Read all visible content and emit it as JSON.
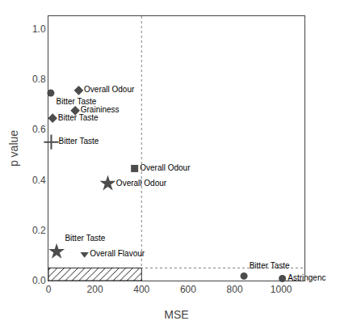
{
  "chart_data": {
    "type": "scatter",
    "xlabel": "MSE",
    "ylabel": "p value",
    "x": [
      10,
      130,
      115,
      18,
      12,
      370,
      255,
      35,
      155,
      840,
      1005
    ],
    "values": [
      0.745,
      0.755,
      0.675,
      0.645,
      0.55,
      0.445,
      0.385,
      0.115,
      0.105,
      0.018,
      0.008
    ],
    "labels": [
      "Bitter Taste",
      "Overall Odour",
      "Graininess",
      "Bitter Taste",
      "Bitter Taste",
      "Overall Odour",
      "Overall Odour",
      "Bitter Taste",
      "Overall Flavour",
      "Bitter Taste",
      "Astringenc"
    ],
    "markers": [
      "circle",
      "diamond",
      "diamond",
      "diamond",
      "plus",
      "square",
      "star",
      "star",
      "triangle-down",
      "circle",
      "circle"
    ],
    "color": "black",
    "xlim": [
      0,
      1100
    ],
    "xticks": [
      0,
      200,
      400,
      600,
      800,
      1000
    ],
    "ylim": [
      0.0,
      1.05
    ],
    "yticks": [
      {
        "value": 0,
        "label": "0.0"
      },
      0.2,
      0.4,
      0.6,
      0.8,
      {
        "value": 1,
        "label": "1.0"
      }
    ],
    "grid": false,
    "vline_x": 400,
    "hline_y": 0.05,
    "hatch_region": {
      "x": [
        0,
        400
      ],
      "y": [
        0,
        0.05
      ]
    }
  }
}
